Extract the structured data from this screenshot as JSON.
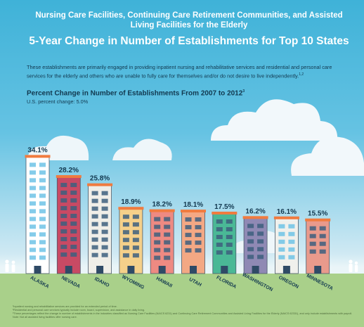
{
  "header": {
    "supertitle": "Nursing Care Facilities, Continuing Care Retirement Communities, and Assisted Living Facilities for the Elderly",
    "title": "5-Year Change in Number of Establishments for Top 10 States",
    "intro": "These establishments are primarily engaged in providing inpatient nursing and rehabilitative services and residential and personal care services for the elderly and others who are unable to fully care for themselves and/or do not desire to live independently.",
    "intro_sup": "1,2"
  },
  "chart_title": "Percent Change in Number of Establishments From 2007 to 2012",
  "chart_title_sup": "3",
  "us_change": "U.S. percent change: 5.0%",
  "chart_data": {
    "type": "bar",
    "title": "Percent Change in Number of Establishments From 2007 to 2012",
    "categories": [
      "ALASKA",
      "NEVADA",
      "IDAHO",
      "WYOMING",
      "HAWAII",
      "UTAH",
      "FLORIDA",
      "WASHINGTON",
      "OREGON",
      "MINNESOTA"
    ],
    "values": [
      34.1,
      28.2,
      25.8,
      18.9,
      18.2,
      18.1,
      17.5,
      16.2,
      16.1,
      15.5
    ],
    "labels": [
      "34.1%",
      "28.2%",
      "25.8%",
      "18.9%",
      "18.2%",
      "18.1%",
      "17.5%",
      "16.2%",
      "16.1%",
      "15.5%"
    ],
    "ylim": [
      0,
      35
    ],
    "grid": false,
    "colors": [
      "#ffffff",
      "#c84a64",
      "#f0eee8",
      "#f5d08a",
      "#ee8a82",
      "#f3a884",
      "#4ab896",
      "#8f89b4",
      "#f0f0ec",
      "#e99a8c"
    ]
  },
  "footnotes": [
    "¹Inpatient nursing and rehabilitative services are provided for an extended period of time.",
    "²Residential and personal care services typically include room, board, supervision, and assistance in daily living.",
    "³These percentages reflect the change in number of establishments in the industries classified as Nursing Care Facilities (NAICS 6231) and Continuing Care Retirement Communities and Assisted Living Facilities for the Elderly (NAICS 62331), and only include establishments with payroll.",
    "Note: Not all assisted living facilities offer nursing care."
  ]
}
